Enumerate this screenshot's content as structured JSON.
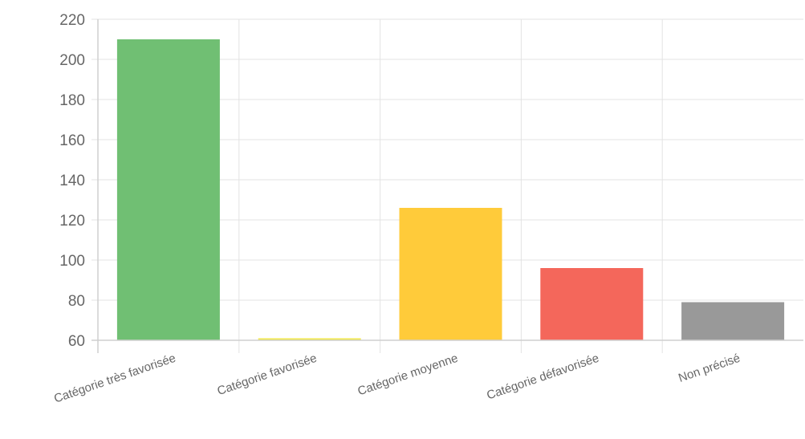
{
  "chart_data": {
    "type": "bar",
    "categories": [
      "Catégorie très favorisée",
      "Catégorie favorisée",
      "Catégorie moyenne",
      "Catégorie défavorisée",
      "Non précisé"
    ],
    "values": [
      210,
      61,
      126,
      96,
      79
    ],
    "colors": [
      "#70bf73",
      "#f2e84a",
      "#ffcb3a",
      "#f4675b",
      "#999999"
    ],
    "ylim": [
      60,
      220
    ],
    "yticks": [
      60,
      80,
      100,
      120,
      140,
      160,
      180,
      200,
      220
    ],
    "grid": true,
    "title": "",
    "xlabel": "",
    "ylabel": ""
  }
}
